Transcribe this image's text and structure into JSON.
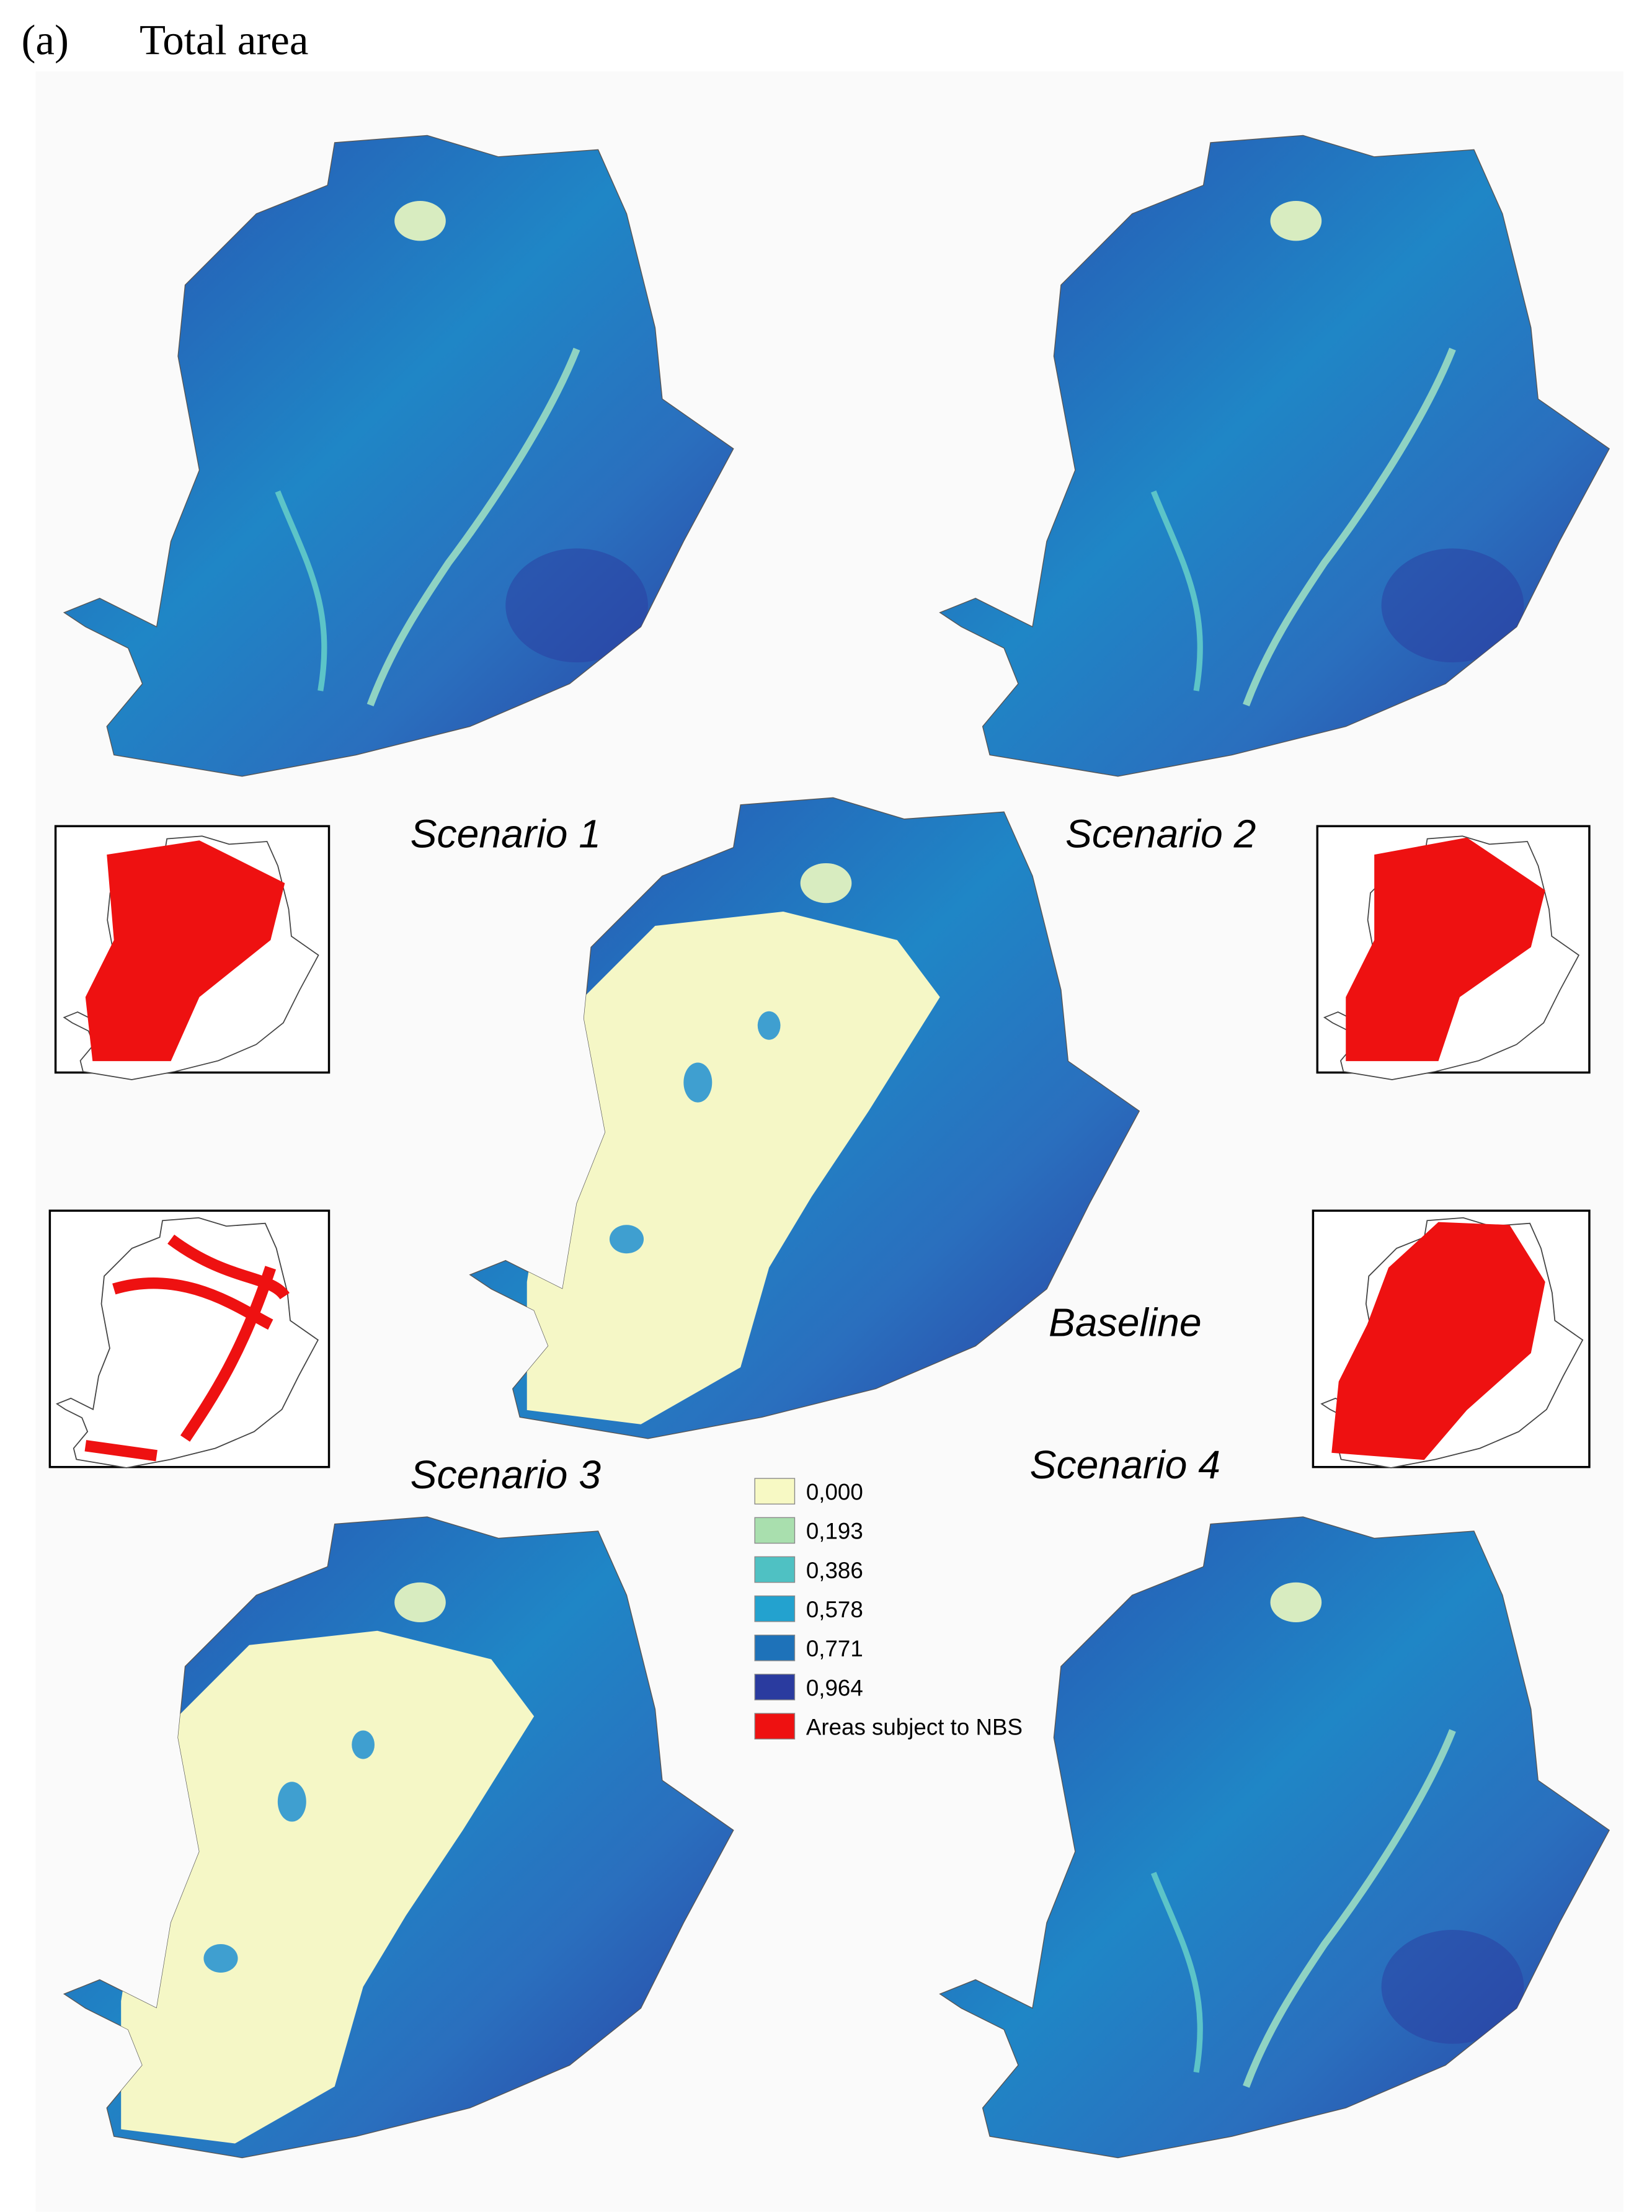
{
  "header": {
    "panel": "(a)",
    "title": "Total area"
  },
  "maps": [
    {
      "label": "Scenario 1"
    },
    {
      "label": "Scenario 2"
    },
    {
      "label": "Baseline"
    },
    {
      "label": "Scenario 3"
    },
    {
      "label": "Scenario 4"
    }
  ],
  "legend": {
    "items": [
      {
        "label": "0,000",
        "color": "#f7f9c4"
      },
      {
        "label": "0,193",
        "color": "#a9dfae"
      },
      {
        "label": "0,386",
        "color": "#4fc1c3"
      },
      {
        "label": "0,578",
        "color": "#23a2cf"
      },
      {
        "label": "0,771",
        "color": "#1e72b9"
      },
      {
        "label": "0,964",
        "color": "#2a3b9f"
      },
      {
        "label": "Areas subject to NBS",
        "color": "#ee1111"
      }
    ]
  }
}
